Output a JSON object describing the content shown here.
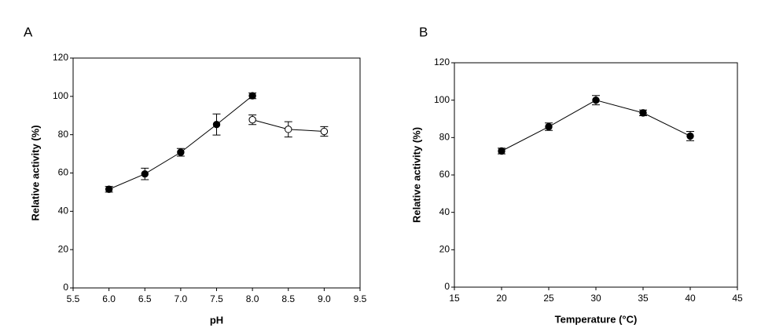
{
  "chart_data": [
    {
      "type": "line",
      "label": "A",
      "x_label": "pH",
      "y_label": "Relative activity (%)",
      "xlim": [
        5.5,
        9.5
      ],
      "xticks": [
        {
          "value": 5.5,
          "label": "5.5"
        },
        {
          "value": 6,
          "label": "6.0"
        },
        {
          "value": 6.5,
          "label": "6.5"
        },
        {
          "value": 7,
          "label": "7.0"
        },
        {
          "value": 7.5,
          "label": "7.5"
        },
        {
          "value": 8,
          "label": "8.0"
        },
        {
          "value": 8.5,
          "label": "8.5"
        },
        {
          "value": 9,
          "label": "9.0"
        },
        {
          "value": 9.5,
          "label": "9.5"
        }
      ],
      "ylim": [
        0,
        120
      ],
      "yticks": [
        0,
        20,
        40,
        60,
        80,
        100,
        120
      ],
      "series": [
        {
          "color": "#000000",
          "marker": "filled",
          "x": [
            6,
            6.5,
            7,
            7.5,
            8
          ],
          "values": [
            51.5,
            59.5,
            70.8,
            85.3,
            100.3
          ],
          "errors": [
            1.5,
            3,
            2,
            5.5,
            1.5
          ]
        },
        {
          "color": "#000000",
          "marker": "open",
          "x": [
            8,
            8.5,
            9
          ],
          "values": [
            87.8,
            82.8,
            81.7
          ],
          "errors": [
            2.5,
            4,
            2.5
          ]
        }
      ]
    },
    {
      "type": "line",
      "label": "B",
      "x_label": "Temperature (°C)",
      "y_label": "Relative activity (%)",
      "xlim": [
        15,
        45
      ],
      "xticks": [
        15,
        20,
        25,
        30,
        35,
        40,
        45
      ],
      "ylim": [
        0,
        120
      ],
      "yticks": [
        0,
        20,
        40,
        60,
        80,
        100,
        120
      ],
      "series": [
        {
          "color": "#000000",
          "marker": "filled",
          "x": [
            20,
            25,
            30,
            35,
            40
          ],
          "values": [
            72.8,
            85.8,
            100,
            93.2,
            80.8
          ],
          "errors": [
            1.5,
            2,
            2.5,
            1.5,
            2.5
          ]
        }
      ]
    }
  ]
}
